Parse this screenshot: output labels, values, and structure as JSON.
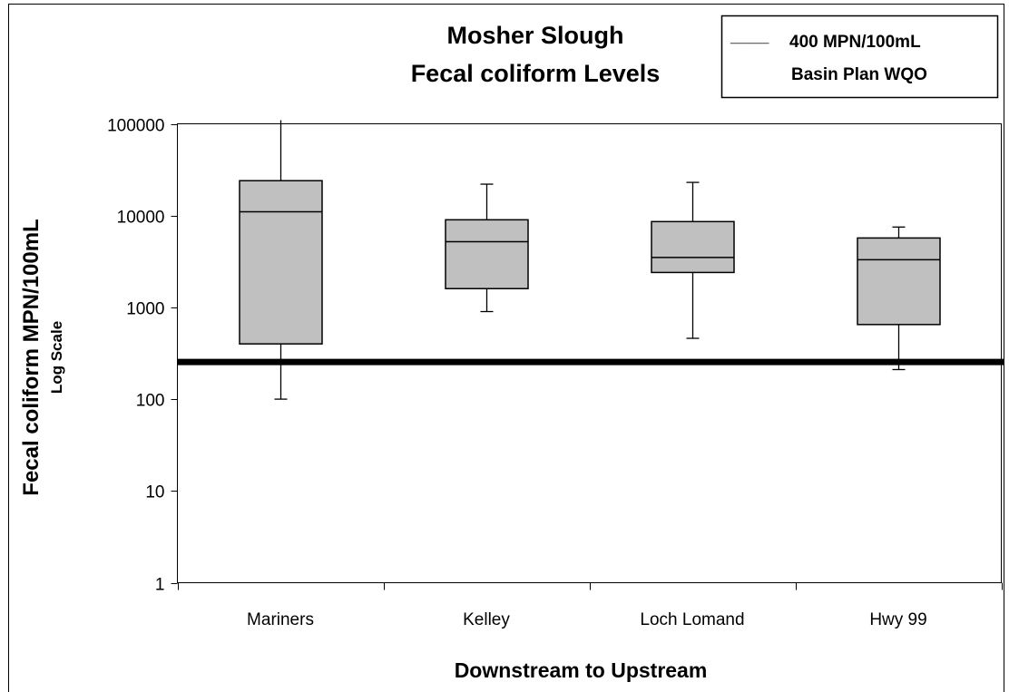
{
  "chart_data": {
    "type": "box",
    "title": [
      "Mosher Slough",
      "Fecal coliform Levels"
    ],
    "xlabel": "Downstream to Upstream",
    "ylabel": "Fecal coliform MPN/100mL",
    "ylabel_sub": "Log Scale",
    "y_scale": "log",
    "ylim": [
      1,
      100000
    ],
    "y_ticks": [
      1,
      10,
      100,
      1000,
      10000,
      100000
    ],
    "y_tick_labels": [
      "1",
      "10",
      "100",
      "1000",
      "10000",
      "100000"
    ],
    "categories": [
      "Mariners",
      "Kelley",
      "Loch Lomand",
      "Hwy 99"
    ],
    "boxes": [
      {
        "category": "Mariners",
        "min": 100,
        "q1": 400,
        "median": 11000,
        "q3": 24000,
        "max": 110000
      },
      {
        "category": "Kelley",
        "min": 900,
        "q1": 1600,
        "median": 5200,
        "q3": 9000,
        "max": 22000
      },
      {
        "category": "Loch Lomand",
        "min": 460,
        "q1": 2400,
        "median": 3500,
        "q3": 8600,
        "max": 23000
      },
      {
        "category": "Hwy 99",
        "min": 210,
        "q1": 650,
        "median": 3300,
        "q3": 5700,
        "max": 7500
      }
    ],
    "reference_line": {
      "value": 400,
      "label": "400 MPN/100mL",
      "sublabel": "Basin Plan WQO",
      "legend_line": "____"
    },
    "box_fill": "#c0c0c0",
    "line_color": "#000000",
    "grid": false,
    "legend_position": "top-right"
  }
}
